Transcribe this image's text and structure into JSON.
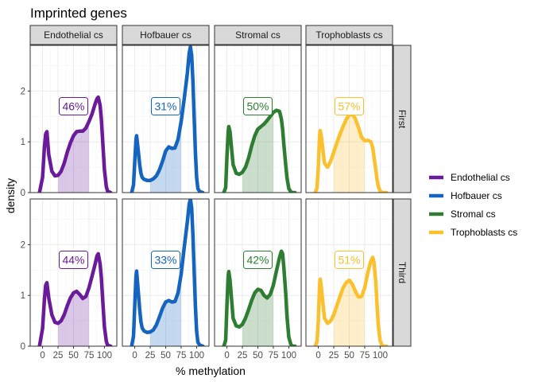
{
  "chart_data": {
    "type": "area",
    "title": "Imprinted genes",
    "xlabel": "% methylation",
    "ylabel": "density",
    "xlim": [
      -20,
      120
    ],
    "ylim": [
      0,
      2.9
    ],
    "xticks": [
      0,
      25,
      50,
      75,
      100
    ],
    "yticks": [
      0,
      1,
      2
    ],
    "grid": true,
    "legend_position": "right",
    "shaded_interval": [
      25,
      75
    ],
    "columns": [
      "Endothelial cs",
      "Hofbauer cs",
      "Stromal cs",
      "Trophoblasts cs"
    ],
    "rows": [
      "First",
      "Third"
    ],
    "colors": {
      "Endothelial cs": "#6a1b9a",
      "Hofbauer cs": "#1565c0",
      "Stromal cs": "#2e7d32",
      "Trophoblasts cs": "#fbc02d"
    },
    "legend": [
      "Endothelial cs",
      "Hofbauer cs",
      "Stromal cs",
      "Trophoblasts cs"
    ],
    "panels": [
      {
        "row": "First",
        "column": "Endothelial cs",
        "label": "46%",
        "x": [
          -5,
          0,
          3,
          5,
          7,
          10,
          15,
          20,
          25,
          30,
          35,
          40,
          45,
          50,
          55,
          60,
          65,
          70,
          75,
          80,
          85,
          88,
          90,
          93,
          95,
          97,
          100,
          103,
          105,
          110
        ],
        "y": [
          0,
          0.3,
          0.9,
          1.15,
          1.2,
          0.75,
          0.42,
          0.33,
          0.34,
          0.42,
          0.58,
          0.8,
          0.98,
          1.12,
          1.2,
          1.21,
          1.21,
          1.27,
          1.4,
          1.55,
          1.75,
          1.85,
          1.88,
          1.72,
          1.45,
          1.05,
          0.45,
          0.12,
          0.03,
          0
        ]
      },
      {
        "row": "First",
        "column": "Hofbauer cs",
        "label": "31%",
        "x": [
          -5,
          -2,
          0,
          2,
          3,
          5,
          8,
          10,
          12,
          15,
          20,
          25,
          30,
          35,
          40,
          45,
          50,
          55,
          60,
          65,
          70,
          75,
          80,
          85,
          88,
          90,
          92,
          94,
          96,
          98,
          100,
          102,
          105,
          110
        ],
        "y": [
          0,
          0.15,
          0.6,
          1.05,
          1.12,
          0.9,
          0.55,
          0.38,
          0.3,
          0.26,
          0.24,
          0.24,
          0.27,
          0.33,
          0.45,
          0.62,
          0.82,
          0.9,
          0.87,
          0.88,
          1.05,
          1.4,
          1.85,
          2.35,
          2.75,
          2.87,
          2.7,
          2.2,
          1.5,
          0.8,
          0.3,
          0.08,
          0.02,
          0
        ]
      },
      {
        "row": "First",
        "column": "Stromal cs",
        "label": "50%",
        "x": [
          -5,
          -2,
          0,
          2,
          3,
          5,
          8,
          10,
          15,
          20,
          25,
          30,
          35,
          40,
          45,
          50,
          55,
          60,
          65,
          70,
          75,
          80,
          85,
          88,
          90,
          92,
          95,
          97,
          100,
          103,
          105,
          110
        ],
        "y": [
          0,
          0.1,
          0.7,
          1.2,
          1.3,
          1.2,
          0.8,
          0.55,
          0.38,
          0.36,
          0.4,
          0.5,
          0.68,
          0.92,
          1.12,
          1.25,
          1.3,
          1.35,
          1.42,
          1.5,
          1.58,
          1.62,
          1.6,
          1.45,
          1.25,
          0.95,
          0.55,
          0.3,
          0.08,
          0.02,
          0,
          0
        ]
      },
      {
        "row": "First",
        "column": "Trophoblasts cs",
        "label": "57%",
        "x": [
          -5,
          -2,
          0,
          2,
          3,
          5,
          8,
          10,
          15,
          20,
          25,
          30,
          35,
          40,
          45,
          50,
          55,
          60,
          65,
          70,
          75,
          80,
          85,
          88,
          90,
          93,
          95,
          97,
          100,
          103,
          105,
          110
        ],
        "y": [
          0,
          0.1,
          0.5,
          1.1,
          1.22,
          1.1,
          0.78,
          0.58,
          0.5,
          0.62,
          0.8,
          0.98,
          1.15,
          1.3,
          1.44,
          1.53,
          1.55,
          1.45,
          1.28,
          1.09,
          1.02,
          1.03,
          1.0,
          0.88,
          0.7,
          0.45,
          0.25,
          0.12,
          0.03,
          0,
          0,
          0
        ]
      },
      {
        "row": "Third",
        "column": "Endothelial cs",
        "label": "44%",
        "x": [
          -5,
          0,
          3,
          5,
          7,
          10,
          15,
          20,
          25,
          30,
          35,
          40,
          45,
          50,
          55,
          60,
          65,
          70,
          75,
          80,
          85,
          88,
          90,
          93,
          95,
          97,
          100,
          103,
          105,
          110
        ],
        "y": [
          0,
          0.35,
          0.92,
          1.2,
          1.25,
          0.95,
          0.62,
          0.47,
          0.45,
          0.5,
          0.62,
          0.8,
          0.95,
          1.05,
          1.08,
          1.02,
          0.94,
          0.98,
          1.15,
          1.38,
          1.62,
          1.78,
          1.82,
          1.62,
          1.35,
          0.95,
          0.38,
          0.1,
          0.02,
          0
        ]
      },
      {
        "row": "Third",
        "column": "Hofbauer cs",
        "label": "33%",
        "x": [
          -5,
          -2,
          0,
          2,
          3,
          5,
          8,
          10,
          12,
          15,
          20,
          25,
          30,
          35,
          40,
          45,
          50,
          55,
          60,
          65,
          70,
          75,
          80,
          85,
          88,
          90,
          92,
          94,
          96,
          98,
          100,
          102,
          105,
          110
        ],
        "y": [
          0,
          0.2,
          0.8,
          1.38,
          1.48,
          1.18,
          0.72,
          0.48,
          0.36,
          0.3,
          0.27,
          0.28,
          0.32,
          0.42,
          0.58,
          0.75,
          0.87,
          0.9,
          0.87,
          0.88,
          1.05,
          1.42,
          1.95,
          2.45,
          2.8,
          2.9,
          2.72,
          2.2,
          1.5,
          0.8,
          0.3,
          0.08,
          0.02,
          0
        ]
      },
      {
        "row": "Third",
        "column": "Stromal cs",
        "label": "42%",
        "x": [
          -5,
          -2,
          0,
          2,
          3,
          5,
          8,
          10,
          15,
          20,
          25,
          30,
          35,
          40,
          45,
          50,
          55,
          60,
          65,
          70,
          75,
          80,
          85,
          88,
          90,
          92,
          95,
          97,
          100,
          103,
          105,
          110
        ],
        "y": [
          0,
          0.12,
          0.8,
          1.38,
          1.47,
          1.3,
          0.85,
          0.55,
          0.4,
          0.38,
          0.43,
          0.55,
          0.72,
          0.9,
          1.05,
          1.12,
          1.1,
          1.0,
          0.95,
          1.02,
          1.2,
          1.48,
          1.75,
          1.87,
          1.82,
          1.55,
          1.05,
          0.6,
          0.18,
          0.05,
          0,
          0
        ]
      },
      {
        "row": "Third",
        "column": "Trophoblasts cs",
        "label": "51%",
        "x": [
          -5,
          -2,
          0,
          2,
          3,
          5,
          8,
          10,
          15,
          20,
          25,
          30,
          35,
          40,
          45,
          50,
          55,
          60,
          65,
          70,
          75,
          80,
          85,
          88,
          90,
          93,
          95,
          97,
          100,
          103,
          105,
          110
        ],
        "y": [
          0,
          0.1,
          0.5,
          1.18,
          1.32,
          1.15,
          0.78,
          0.55,
          0.45,
          0.5,
          0.62,
          0.8,
          0.98,
          1.15,
          1.25,
          1.3,
          1.22,
          1.08,
          0.97,
          0.98,
          1.15,
          1.45,
          1.68,
          1.75,
          1.65,
          1.25,
          0.8,
          0.4,
          0.1,
          0.02,
          0,
          0
        ]
      }
    ]
  }
}
